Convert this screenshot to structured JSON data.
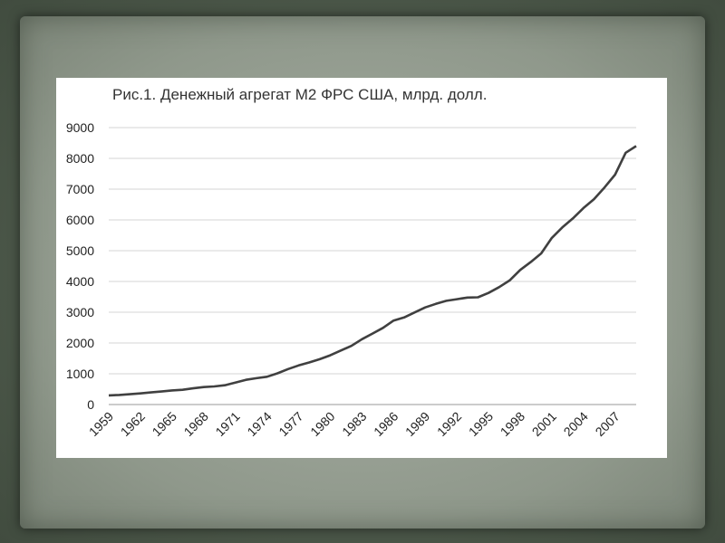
{
  "chart_data": {
    "type": "line",
    "title": "Рис.1. Денежный агрегат М2 ФРС США, млрд. долл.",
    "xlabel": "",
    "ylabel": "",
    "ylim": [
      0,
      9000
    ],
    "yticks": [
      0,
      1000,
      2000,
      3000,
      4000,
      5000,
      6000,
      7000,
      8000,
      9000
    ],
    "xtick_labels": [
      "1959",
      "1962",
      "1965",
      "1968",
      "1971",
      "1974",
      "1977",
      "1980",
      "1983",
      "1986",
      "1989",
      "1992",
      "1995",
      "1998",
      "2001",
      "2004",
      "2007"
    ],
    "grid": true,
    "legend": "none",
    "line_color": "#404040",
    "series": [
      {
        "x": [
          1959,
          1960,
          1961,
          1962,
          1963,
          1964,
          1965,
          1966,
          1967,
          1968,
          1969,
          1970,
          1971,
          1972,
          1973,
          1974,
          1975,
          1976,
          1977,
          1978,
          1979,
          1980,
          1981,
          1982,
          1983,
          1984,
          1985,
          1986,
          1987,
          1988,
          1989,
          1990,
          1991,
          1992,
          1993,
          1994,
          1995,
          1996,
          1997,
          1998,
          1999,
          2000,
          2001,
          2002,
          2003,
          2004,
          2005,
          2006,
          2007,
          2008,
          2009
        ],
        "values": [
          297,
          312,
          335,
          363,
          393,
          424,
          459,
          480,
          525,
          567,
          588,
          627,
          711,
          802,
          855,
          903,
          1016,
          1152,
          1271,
          1367,
          1474,
          1600,
          1756,
          1906,
          2124,
          2306,
          2492,
          2729,
          2829,
          2994,
          3155,
          3272,
          3372,
          3425,
          3475,
          3485,
          3627,
          3815,
          4032,
          4375,
          4628,
          4912,
          5416,
          5756,
          6050,
          6386,
          6674,
          7055,
          7470,
          8181,
          8400
        ]
      }
    ]
  }
}
